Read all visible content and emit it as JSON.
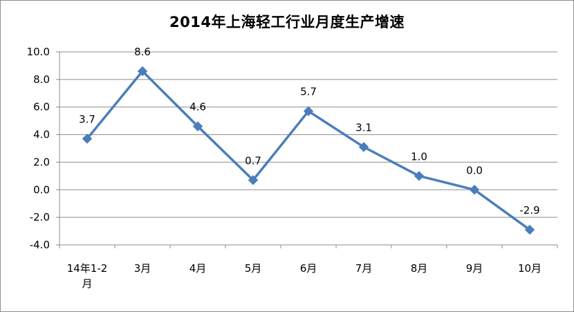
{
  "chart_data": {
    "type": "line",
    "title": "2014年上海轻工行业月度生产增速",
    "categories": [
      "14年1-2月",
      "3月",
      "4月",
      "5月",
      "6月",
      "7月",
      "8月",
      "9月",
      "10月"
    ],
    "series": [
      {
        "values": [
          3.7,
          8.6,
          4.6,
          0.7,
          5.7,
          3.1,
          1.0,
          0.0,
          -2.9
        ],
        "labels": [
          "3.7",
          "8.6",
          "4.6",
          "0.7",
          "5.7",
          "3.1",
          "1.0",
          "0.0",
          "-2.9"
        ],
        "color": "#4a7ebb",
        "marker": "diamond"
      }
    ],
    "ylim": [
      -4.0,
      10.0
    ],
    "yticks": [
      "-4.0",
      "-2.0",
      "0.0",
      "2.0",
      "4.0",
      "6.0",
      "8.0",
      "10.0"
    ],
    "ytick_values": [
      -4,
      -2,
      0,
      2,
      4,
      6,
      8,
      10
    ],
    "grid": true,
    "legend": "none",
    "xlabel": "",
    "ylabel": ""
  }
}
